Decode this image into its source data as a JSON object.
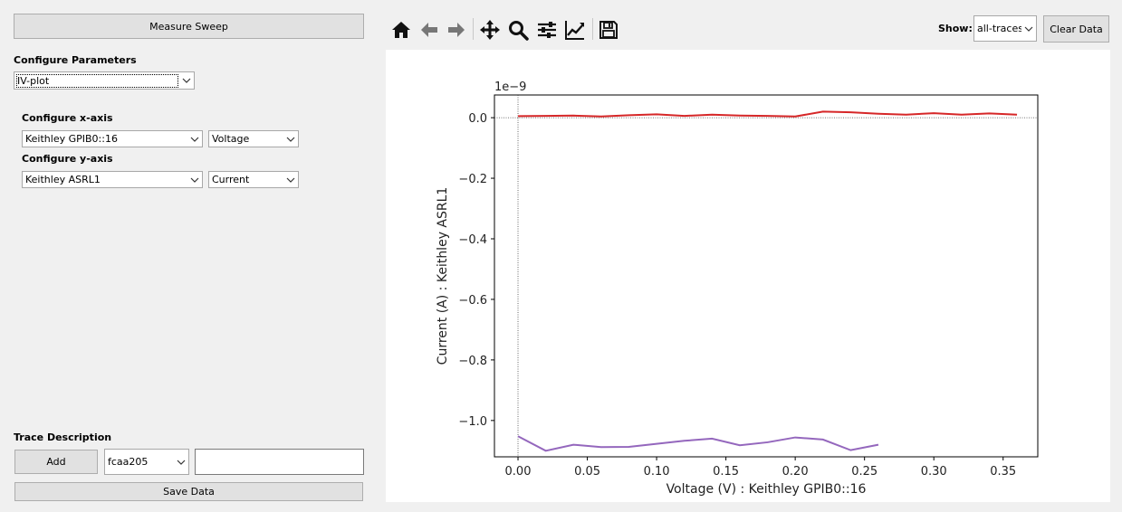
{
  "left_panel": {
    "measure_button": "Measure Sweep",
    "configure_params_label": "Configure Parameters",
    "param_select": "IV-plot",
    "x_axis_label": "Configure x-axis",
    "x_instrument": "Keithley GPIB0::16",
    "x_quantity": "Voltage",
    "y_axis_label": "Configure y-axis",
    "y_instrument": "Keithley ASRL1",
    "y_quantity": "Current",
    "trace_desc_label": "Trace Description",
    "add_button": "Add",
    "trace_select": "fcaa205",
    "trace_input_value": "",
    "save_button": "Save Data"
  },
  "toolbar": {
    "icons": [
      "home-icon",
      "back-arrow-icon",
      "forward-arrow-icon",
      "pan-icon",
      "zoom-icon",
      "configure-subplots-icon",
      "edit-axis-icon",
      "save-figure-icon"
    ],
    "show_label": "Show:",
    "show_select": "all-traces",
    "clear_button": "Clear Data"
  },
  "chart_data": {
    "type": "line",
    "title": "",
    "xlabel": "Voltage (V) : Keithley GPIB0::16",
    "ylabel": "Current (A) : Keithley ASRL1",
    "offset_text": "1e−9",
    "xlim": [
      -0.017,
      0.375
    ],
    "ylim": [
      -1.12,
      0.075
    ],
    "x_ticks": [
      0.0,
      0.05,
      0.1,
      0.15,
      0.2,
      0.25,
      0.3,
      0.35
    ],
    "x_tick_labels": [
      "0.00",
      "0.05",
      "0.10",
      "0.15",
      "0.20",
      "0.25",
      "0.30",
      "0.35"
    ],
    "y_ticks": [
      0.0,
      -0.2,
      -0.4,
      -0.6,
      -0.8,
      -1.0
    ],
    "y_tick_labels": [
      "0.0",
      "−0.2",
      "−0.4",
      "−0.6",
      "−0.8",
      "−1.0"
    ],
    "reference_lines": {
      "x": 0,
      "y": 0
    },
    "grid": false,
    "series": [
      {
        "color": "#d62728",
        "x": [
          0.0,
          0.02,
          0.04,
          0.06,
          0.08,
          0.1,
          0.12,
          0.14,
          0.16,
          0.18,
          0.2,
          0.22,
          0.24,
          0.26,
          0.28,
          0.3,
          0.32,
          0.34,
          0.36
        ],
        "y": [
          0.005,
          0.006,
          0.007,
          0.004,
          0.008,
          0.011,
          0.006,
          0.01,
          0.007,
          0.006,
          0.004,
          0.02,
          0.018,
          0.013,
          0.01,
          0.015,
          0.01,
          0.014,
          0.01
        ]
      },
      {
        "color": "#9467bd",
        "x": [
          0.0,
          0.02,
          0.04,
          0.06,
          0.08,
          0.1,
          0.12,
          0.14,
          0.16,
          0.18,
          0.2,
          0.22,
          0.24,
          0.26
        ],
        "y": [
          -1.052,
          -1.1,
          -1.08,
          -1.088,
          -1.087,
          -1.077,
          -1.067,
          -1.06,
          -1.082,
          -1.072,
          -1.056,
          -1.063,
          -1.098,
          -1.08
        ]
      }
    ]
  }
}
